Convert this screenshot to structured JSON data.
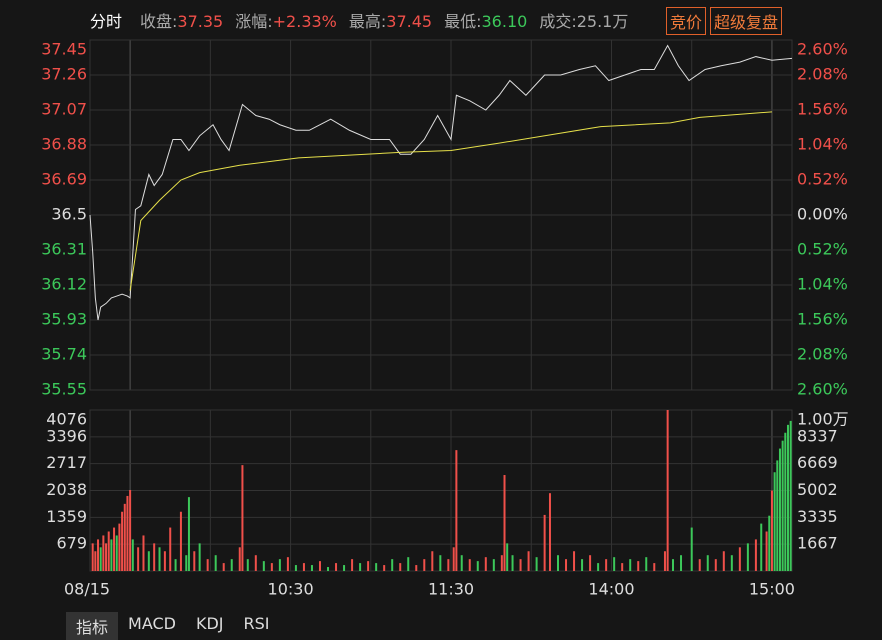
{
  "header": {
    "title": "分时",
    "stats": [
      {
        "label": "收盘:",
        "value": "37.35",
        "color": "#f0504a"
      },
      {
        "label": "涨幅:",
        "value": "+2.33%",
        "color": "#f0504a"
      },
      {
        "label": "最高:",
        "value": "37.45",
        "color": "#f0504a"
      },
      {
        "label": "最低:",
        "value": "36.10",
        "color": "#3cc85a"
      },
      {
        "label": "成交:",
        "value": "25.1万",
        "color": "#aaaaaa"
      }
    ],
    "buttons": [
      "竞价",
      "超级复盘"
    ]
  },
  "chart_data": [
    {
      "type": "line",
      "xlim": [
        -15,
        247.5
      ],
      "xgrid": [
        0,
        30,
        60,
        90,
        120,
        150,
        180,
        210,
        240
      ],
      "ylim": [
        35.55,
        37.45
      ],
      "yticks": [
        35.55,
        35.74,
        35.93,
        36.12,
        36.31,
        36.5,
        36.69,
        36.88,
        37.07,
        37.26,
        37.45
      ],
      "y2lim": [
        -2.6,
        2.6
      ],
      "y2ticks": [
        {
          "value": -2.6,
          "label": "2.60%"
        },
        {
          "value": -2.08,
          "label": "2.08%"
        },
        {
          "value": -1.56,
          "label": "1.56%"
        },
        {
          "value": -1.04,
          "label": "1.04%"
        },
        {
          "value": -0.52,
          "label": "0.52%"
        },
        {
          "value": 0,
          "label": "0.00%"
        },
        {
          "value": 0.52,
          "label": "0.52%"
        },
        {
          "value": 1.04,
          "label": "1.04%"
        },
        {
          "value": 1.56,
          "label": "1.56%"
        },
        {
          "value": 2.08,
          "label": "2.08%"
        },
        {
          "value": 2.6,
          "label": "2.60%"
        }
      ],
      "series": [
        {
          "color": "#dddddd",
          "x": [
            -15,
            -14,
            -13,
            -12,
            -11,
            -9,
            -7,
            -5,
            -3,
            -1,
            0,
            2,
            4,
            7,
            9,
            12,
            16,
            19,
            22,
            26,
            31,
            34,
            37,
            42,
            47,
            52,
            56,
            62,
            67,
            75,
            82,
            90,
            97,
            101,
            105,
            110,
            115,
            120,
            122,
            127,
            133,
            138,
            142,
            148,
            155,
            161,
            168,
            174,
            179,
            185,
            191,
            196,
            201,
            205,
            209,
            215,
            221,
            228,
            234,
            240,
            247.5
          ],
          "values": [
            36.5,
            36.3,
            36.05,
            35.93,
            36.0,
            36.02,
            36.05,
            36.06,
            36.07,
            36.06,
            36.05,
            36.53,
            36.55,
            36.72,
            36.66,
            36.72,
            36.91,
            36.91,
            36.85,
            36.93,
            36.99,
            36.91,
            36.85,
            37.1,
            37.04,
            37.02,
            36.99,
            36.96,
            36.96,
            37.02,
            36.96,
            36.91,
            36.91,
            36.83,
            36.83,
            36.91,
            37.04,
            36.91,
            37.15,
            37.12,
            37.07,
            37.15,
            37.23,
            37.15,
            37.26,
            37.26,
            37.29,
            37.31,
            37.23,
            37.26,
            37.29,
            37.29,
            37.42,
            37.31,
            37.23,
            37.29,
            37.31,
            37.33,
            37.36,
            37.34,
            37.35
          ]
        },
        {
          "color": "#e6e04a",
          "x": [
            0,
            4,
            11,
            19,
            26,
            41,
            63,
            101,
            120,
            138,
            176,
            202,
            213,
            240
          ],
          "values": [
            36.09,
            36.47,
            36.58,
            36.69,
            36.73,
            36.77,
            36.81,
            36.84,
            36.85,
            36.89,
            36.98,
            37.0,
            37.03,
            37.06
          ]
        }
      ]
    },
    {
      "type": "bar",
      "xlim": [
        -15,
        247.5
      ],
      "xgrid": [
        0,
        30,
        60,
        90,
        120,
        150,
        180,
        210,
        240
      ],
      "xticks": [
        {
          "value": -15,
          "label": "08/15"
        },
        {
          "value": 60,
          "label": "10:30"
        },
        {
          "value": 120,
          "label": "11:30"
        },
        {
          "value": 180,
          "label": "14:00"
        },
        {
          "value": 240,
          "label": "15:00"
        }
      ],
      "ylim": [
        0,
        4076
      ],
      "yticks": [
        679,
        1359,
        2038,
        2717,
        3396,
        4076
      ],
      "y2lim": [
        0,
        10000
      ],
      "y2ticks": [
        1667,
        3335,
        5002,
        6669,
        8337,
        {
          "value": 10000,
          "label": "1.00万"
        }
      ],
      "series": [
        {
          "color": "#f0504a",
          "x": [
            -14,
            -13,
            -12,
            -10,
            -9,
            -8,
            -6,
            -4,
            -3,
            -2,
            -1,
            0,
            3,
            5,
            9,
            13,
            15,
            19,
            24,
            29,
            35,
            41,
            42,
            47,
            53,
            59,
            65,
            71,
            77,
            83,
            89,
            95,
            101,
            107,
            110,
            113,
            119,
            121,
            122,
            127,
            133,
            139,
            140,
            146,
            149,
            155,
            157,
            163,
            166,
            172,
            178,
            184,
            190,
            196,
            200,
            201,
            213,
            219,
            222,
            228,
            234,
            238,
            240
          ],
          "values": [
            700,
            500,
            800,
            900,
            700,
            1000,
            1100,
            1200,
            1500,
            1700,
            1900,
            2050,
            600,
            900,
            700,
            500,
            1100,
            1500,
            500,
            300,
            200,
            600,
            2680,
            400,
            200,
            350,
            200,
            250,
            200,
            300,
            250,
            150,
            200,
            150,
            300,
            500,
            300,
            600,
            3060,
            300,
            350,
            400,
            2430,
            300,
            500,
            1420,
            1970,
            300,
            500,
            400,
            300,
            200,
            250,
            200,
            500,
            4076,
            300,
            300,
            500,
            600,
            800,
            1000,
            2038
          ]
        },
        {
          "color": "#3cc85a",
          "x": [
            -11,
            -7,
            -5,
            1,
            7,
            11,
            17,
            21,
            22,
            26,
            32,
            38,
            44,
            50,
            56,
            62,
            68,
            74,
            80,
            86,
            92,
            98,
            104,
            116,
            124,
            130,
            136,
            141,
            143,
            152,
            160,
            169,
            175,
            181,
            187,
            193,
            203,
            206,
            210,
            216,
            225,
            231,
            236,
            239,
            241,
            242,
            243,
            244,
            245,
            246,
            247
          ],
          "values": [
            600,
            800,
            900,
            800,
            500,
            600,
            300,
            400,
            1870,
            700,
            400,
            300,
            300,
            250,
            300,
            150,
            150,
            100,
            150,
            200,
            200,
            300,
            350,
            400,
            400,
            250,
            300,
            700,
            400,
            350,
            400,
            300,
            200,
            350,
            300,
            350,
            300,
            400,
            1100,
            400,
            400,
            700,
            1200,
            1400,
            2500,
            2800,
            3100,
            3300,
            3500,
            3700,
            3800
          ]
        }
      ]
    }
  ],
  "tabs": [
    "指标",
    "MACD",
    "KDJ",
    "RSI"
  ]
}
